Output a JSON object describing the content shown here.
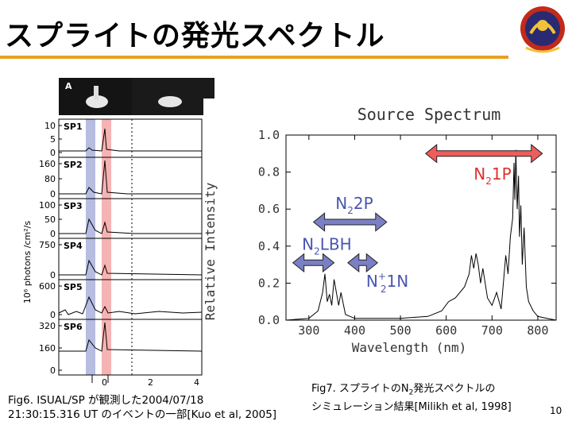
{
  "slide": {
    "title": "スプライトの発光スペクトル",
    "page_number": "10",
    "accent_rule_color": "#e8a020"
  },
  "fig6": {
    "panel_label": "A",
    "ylabel": "10⁶ photons /cm²/s",
    "panels": [
      {
        "name": "SP1",
        "ticks": [
          "10",
          "5",
          "0"
        ]
      },
      {
        "name": "SP2",
        "ticks": [
          "160",
          "80",
          "0"
        ]
      },
      {
        "name": "SP3",
        "ticks": [
          "100",
          "50",
          "0"
        ]
      },
      {
        "name": "SP4",
        "ticks": [
          "750",
          "0"
        ]
      },
      {
        "name": "SP5",
        "ticks": [
          "600",
          "0"
        ]
      },
      {
        "name": "SP6",
        "ticks": [
          "320",
          "160",
          "0"
        ]
      }
    ],
    "xticks": [
      "0",
      "2",
      "4"
    ],
    "band_colors": {
      "blue": "#aab0dc",
      "red": "#f4a6a6"
    },
    "caption_line1": "Fig6. ISUAL/SP が観測した2004/07/18",
    "caption_line2": "21:30:15.316 UT のイベントの一部[Kuo et al, 2005]"
  },
  "fig7": {
    "chart_data": {
      "type": "line",
      "title": "Source Spectrum",
      "xlabel": "Wavelength (nm)",
      "ylabel": "Relative Intensity",
      "xlim": [
        250,
        840
      ],
      "ylim": [
        0,
        1.0
      ],
      "xticks": [
        "300",
        "400",
        "500",
        "600",
        "700",
        "800"
      ],
      "yticks": [
        "0.0",
        "0.2",
        "0.4",
        "0.6",
        "0.8",
        "1.0"
      ],
      "x": [
        250,
        300,
        310,
        320,
        325,
        330,
        335,
        340,
        345,
        350,
        355,
        360,
        365,
        370,
        375,
        380,
        390,
        400,
        430,
        500,
        560,
        590,
        605,
        620,
        640,
        650,
        655,
        660,
        665,
        670,
        675,
        680,
        690,
        700,
        710,
        720,
        730,
        735,
        740,
        745,
        748,
        750,
        752,
        755,
        758,
        760,
        763,
        766,
        770,
        775,
        780,
        790,
        800,
        820,
        840
      ],
      "y": [
        0,
        0.01,
        0.03,
        0.05,
        0.1,
        0.15,
        0.25,
        0.1,
        0.14,
        0.08,
        0.22,
        0.15,
        0.08,
        0.15,
        0.09,
        0.03,
        0.02,
        0.01,
        0.01,
        0.01,
        0.02,
        0.05,
        0.1,
        0.12,
        0.18,
        0.25,
        0.35,
        0.28,
        0.36,
        0.3,
        0.2,
        0.28,
        0.12,
        0.08,
        0.15,
        0.06,
        0.35,
        0.25,
        0.45,
        0.55,
        0.85,
        0.65,
        0.92,
        0.6,
        0.78,
        0.45,
        0.62,
        0.3,
        0.5,
        0.18,
        0.1,
        0.05,
        0.02,
        0.01,
        0.0
      ],
      "annotations": [
        {
          "label": "N2 2P",
          "x_range": [
            310,
            470
          ],
          "y": 0.53,
          "color": "#7b80c4"
        },
        {
          "label": "N2 LBH",
          "x_range": [
            265,
            355
          ],
          "y": 0.31,
          "color": "#7b80c4"
        },
        {
          "label": "N2+ 1N",
          "x_range": [
            385,
            450
          ],
          "y": 0.31,
          "color": "#7b80c4"
        },
        {
          "label": "N2 1P",
          "x_range": [
            555,
            810
          ],
          "y": 0.9,
          "color": "#ef5c5c"
        }
      ]
    },
    "label_n2_1p": {
      "base": "N",
      "sub": "2",
      "rest": "1P"
    },
    "label_n2_2p": {
      "base": "N",
      "sub": "2",
      "rest": "2P"
    },
    "label_n2_lbh": {
      "base": "N",
      "sub": "2",
      "rest": "LBH"
    },
    "label_n2p_1n": {
      "base": "N",
      "sub": "2",
      "sup": "+",
      "rest": "1N"
    },
    "caption_line1_a": "Fig7. スプライトのN",
    "caption_line1_sub": "2",
    "caption_line1_b": "発光スペクトルの",
    "caption_line2": "シミュレーション結果[Milikh et al, 1998]"
  }
}
